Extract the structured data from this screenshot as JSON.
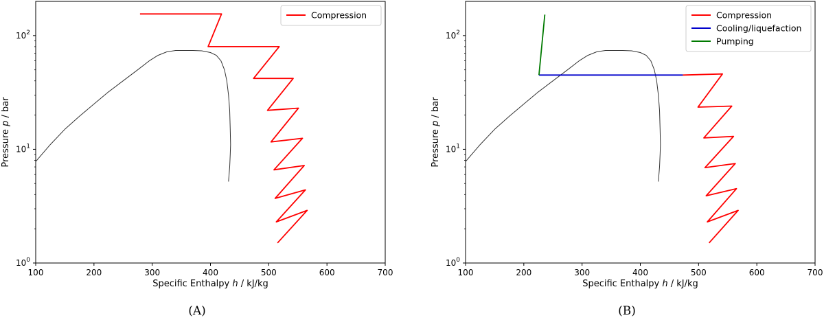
{
  "colors": {
    "compression": "#ff0000",
    "cooling": "#0000cc",
    "pumping": "#007a00",
    "dome": "#333333",
    "axis": "#000000"
  },
  "chart_data": [
    {
      "type": "line",
      "caption": "(A)",
      "xlabel_parts": [
        "Specific Enthalpy ",
        "h",
        " / kJ/kg"
      ],
      "ylabel_parts": [
        "Pressure ",
        "p",
        " / bar"
      ],
      "xlim": [
        100,
        700
      ],
      "ylim": [
        1,
        200
      ],
      "yscale": "log",
      "xticks": [
        100,
        200,
        300,
        400,
        500,
        600,
        700
      ],
      "yticks": [
        {
          "value": 1,
          "base": "10",
          "exp": "0"
        },
        {
          "value": 10,
          "base": "10",
          "exp": "1"
        },
        {
          "value": 100,
          "base": "10",
          "exp": "2"
        }
      ],
      "grid": false,
      "legend_position": "top-right",
      "legend": [
        "Compression"
      ],
      "dome": {
        "x": [
          100,
          125,
          150,
          175,
          200,
          225,
          250,
          275,
          295,
          310,
          325,
          340,
          355,
          370,
          385,
          400,
          410,
          418,
          424,
          428,
          431,
          433,
          434,
          434.5,
          434,
          433,
          432,
          431
        ],
        "y": [
          7.8,
          11,
          15,
          19.5,
          25,
          32,
          40,
          50,
          60,
          67,
          72,
          74,
          74,
          74,
          73.5,
          71,
          67,
          60,
          50,
          40,
          30,
          22,
          15,
          11,
          9,
          7,
          6,
          5.2
        ]
      },
      "series": [
        {
          "name": "Compression",
          "color_key": "compression",
          "x": [
            515,
            566,
            513,
            563,
            511,
            561,
            509,
            558,
            504,
            551,
            498,
            542,
            474,
            518,
            396,
            419,
            279
          ],
          "y": [
            1.5,
            2.9,
            2.3,
            4.4,
            3.7,
            7.2,
            6.6,
            12.5,
            11.6,
            23,
            22,
            42,
            42,
            80,
            80,
            155,
            155
          ]
        }
      ]
    },
    {
      "type": "line",
      "caption": "(B)",
      "xlabel_parts": [
        "Specific Enthalpy ",
        "h",
        " / kJ/kg"
      ],
      "ylabel_parts": [
        "Pressure ",
        "p",
        " / bar"
      ],
      "xlim": [
        100,
        700
      ],
      "ylim": [
        1,
        200
      ],
      "yscale": "log",
      "xticks": [
        100,
        200,
        300,
        400,
        500,
        600,
        700
      ],
      "yticks": [
        {
          "value": 1,
          "base": "10",
          "exp": "0"
        },
        {
          "value": 10,
          "base": "10",
          "exp": "1"
        },
        {
          "value": 100,
          "base": "10",
          "exp": "2"
        }
      ],
      "grid": false,
      "legend_position": "top-right",
      "legend": [
        "Compression",
        "Cooling/liquefaction",
        "Pumping"
      ],
      "dome": {
        "x": [
          100,
          125,
          150,
          175,
          200,
          225,
          250,
          275,
          295,
          310,
          325,
          340,
          355,
          370,
          385,
          400,
          410,
          418,
          424,
          428,
          431,
          433,
          434,
          434.5,
          434,
          433,
          432,
          431
        ],
        "y": [
          7.8,
          11,
          15,
          19.5,
          25,
          32,
          40,
          50,
          60,
          67,
          72,
          74,
          74,
          74,
          73.5,
          71,
          67,
          60,
          50,
          40,
          30,
          22,
          15,
          11,
          9,
          7,
          6,
          5.2
        ]
      },
      "series": [
        {
          "name": "Compression",
          "color_key": "compression",
          "x": [
            518,
            568,
            515,
            565,
            513,
            563,
            511,
            560,
            509,
            557,
            499,
            541,
            473
          ],
          "y": [
            1.5,
            2.9,
            2.3,
            4.5,
            3.9,
            7.5,
            6.9,
            13,
            12.6,
            24,
            23.5,
            46,
            45
          ]
        },
        {
          "name": "Cooling/liquefaction",
          "color_key": "cooling",
          "x": [
            473,
            226
          ],
          "y": [
            45,
            45
          ]
        },
        {
          "name": "Pumping",
          "color_key": "pumping",
          "x": [
            226,
            236
          ],
          "y": [
            45,
            153
          ]
        }
      ]
    }
  ]
}
